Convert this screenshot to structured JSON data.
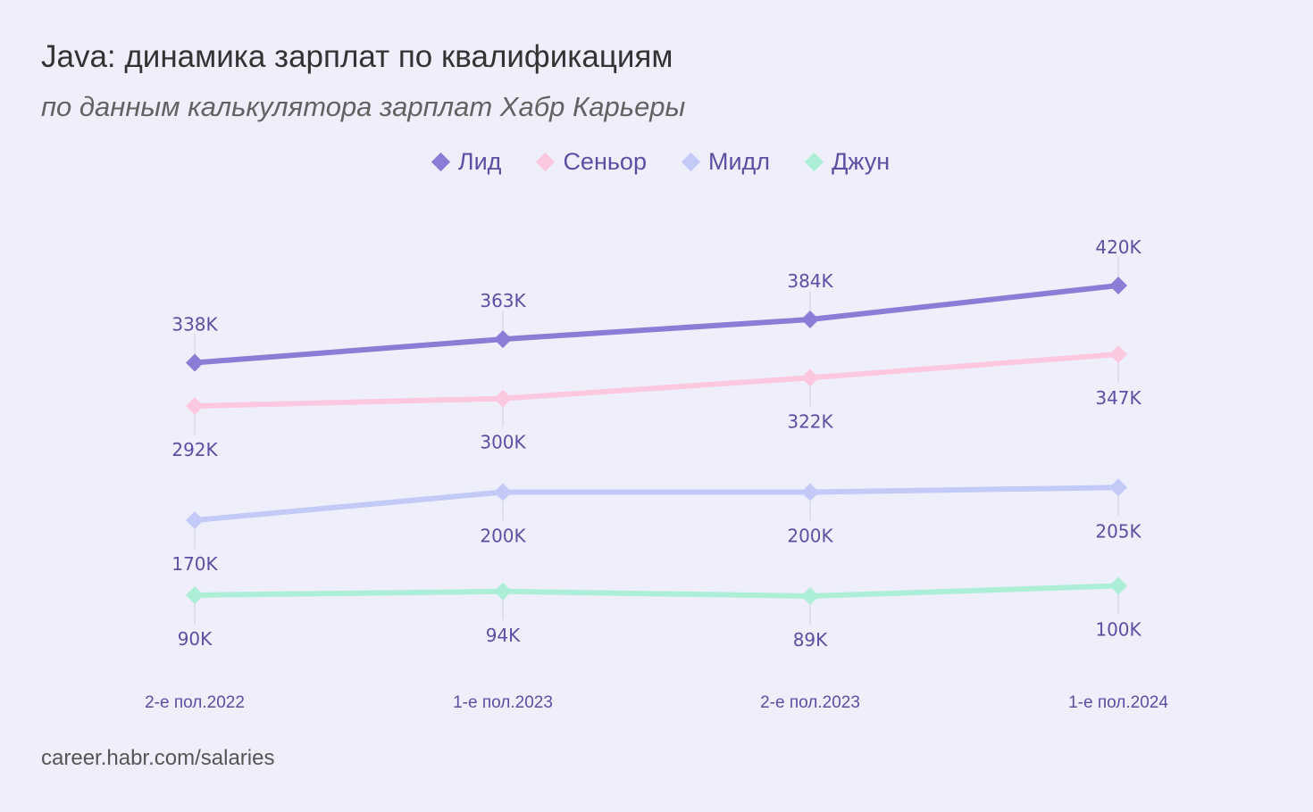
{
  "title": "Java: динамика зарплат по квалификациям",
  "subtitle": "по данным калькулятора зарплат Хабр Карьеры",
  "footer": "career.habr.com/salaries",
  "chart_data": {
    "type": "line",
    "x": [
      "2-е пол.2022",
      "1-е пол.2023",
      "2-е пол.2023",
      "1-е пол.2024"
    ],
    "series": [
      {
        "name": "Лид",
        "color": "#8a7dd6",
        "values": [
          338,
          363,
          384,
          420
        ],
        "labels": [
          "338K",
          "363K",
          "384K",
          "420K"
        ],
        "label_position": "above"
      },
      {
        "name": "Сеньор",
        "color": "#fcc8df",
        "values": [
          292,
          300,
          322,
          347
        ],
        "labels": [
          "292K",
          "300K",
          "322K",
          "347K"
        ],
        "label_position": "below"
      },
      {
        "name": "Мидл",
        "color": "#c3caf8",
        "values": [
          170,
          200,
          200,
          205
        ],
        "labels": [
          "170K",
          "200K",
          "200K",
          "205K"
        ],
        "label_position": "below"
      },
      {
        "name": "Джун",
        "color": "#acefd6",
        "values": [
          90,
          94,
          89,
          100
        ],
        "labels": [
          "90K",
          "94K",
          "89K",
          "100K"
        ],
        "label_position": "below"
      }
    ],
    "legend_position": "top-center",
    "grid": false,
    "text_color": "#5e4da3"
  }
}
